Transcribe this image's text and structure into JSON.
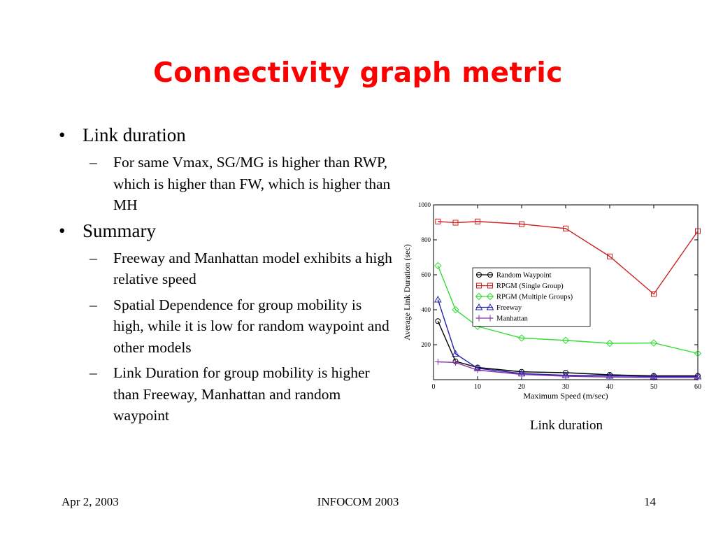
{
  "slide": {
    "title": "Connectivity graph metric",
    "bullets": [
      {
        "text": "Link duration",
        "sub": [
          "For same Vmax, SG/MG is higher than RWP, which is higher than FW, which is higher than MH"
        ]
      },
      {
        "text": "Summary",
        "sub": [
          "Freeway and Manhattan model exhibits a high relative speed",
          "Spatial Dependence for group mobility is high, while it is low for random waypoint and other models",
          "Link Duration for group mobility is higher than Freeway, Manhattan and random waypoint"
        ]
      }
    ],
    "caption": "Link duration"
  },
  "footer": {
    "date": "Apr 2, 2003",
    "conference": "INFOCOM 2003",
    "page": "14"
  },
  "chart_data": {
    "type": "line",
    "xlabel": "Maximum Speed (m/sec)",
    "ylabel": "Average Link Duration (sec)",
    "xlim": [
      0,
      60
    ],
    "ylim": [
      0,
      1000
    ],
    "xticks": [
      0,
      10,
      20,
      30,
      40,
      50,
      60
    ],
    "yticks": [
      200,
      400,
      600,
      800,
      1000
    ],
    "legend_position": "center-right",
    "x": [
      1,
      5,
      10,
      20,
      30,
      40,
      50,
      60
    ],
    "series": [
      {
        "name": "Random Waypoint",
        "color": "#000000",
        "marker": "circle",
        "values": [
          335,
          105,
          70,
          45,
          40,
          28,
          22,
          22
        ]
      },
      {
        "name": "RPGM (Single Group)",
        "color": "#cc2222",
        "marker": "square",
        "values": [
          905,
          898,
          905,
          890,
          865,
          705,
          490,
          850
        ]
      },
      {
        "name": "RPGM (Multiple Groups)",
        "color": "#33dd33",
        "marker": "diamond",
        "values": [
          652,
          400,
          305,
          238,
          225,
          208,
          210,
          150
        ]
      },
      {
        "name": "Freeway",
        "color": "#2222aa",
        "marker": "triangle",
        "values": [
          458,
          148,
          65,
          35,
          25,
          22,
          18,
          18
        ]
      },
      {
        "name": "Manhattan",
        "color": "#8833aa",
        "marker": "plus",
        "values": [
          102,
          98,
          55,
          30,
          20,
          15,
          12,
          12
        ]
      }
    ]
  }
}
